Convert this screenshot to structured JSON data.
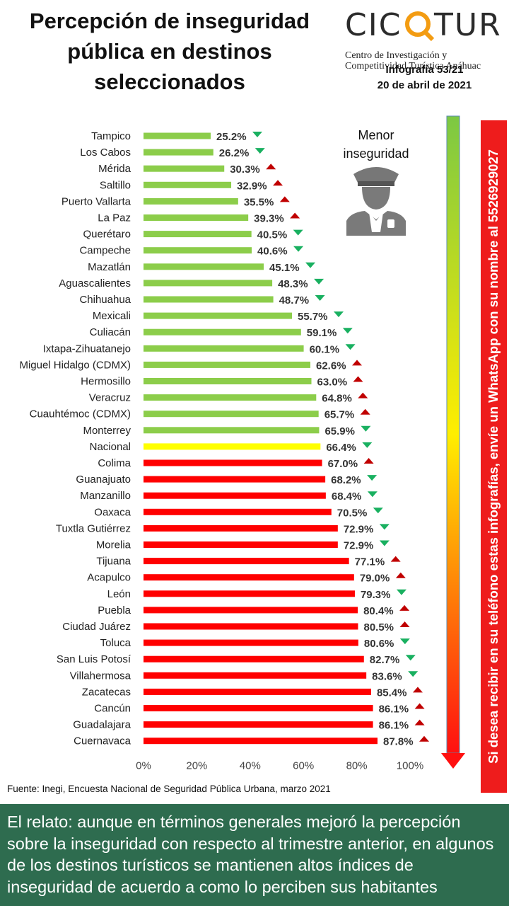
{
  "header": {
    "title_lines": [
      "Percepción de inseguridad",
      "pública en destinos",
      "seleccionados"
    ],
    "logo_text": "CICOTUR",
    "logo_sub_lines": [
      "Centro de Investigación y",
      "Competitividad Turística Anáhuac"
    ],
    "infografia": "Infografía 53/21",
    "date": "20 de abril de 2021"
  },
  "legend": {
    "badge_lines": [
      "Menor",
      "inseguridad"
    ],
    "police_icon": "police-officer-icon",
    "gradient_arrow_icon": "arrow-down-gradient-icon"
  },
  "side_banner": "Si desea recibir en su teléfono estas infografías, envíe un WhatsApp con su nombre al 5526929027",
  "source": "Fuente: Inegi,  Encuesta Nacional de Seguridad Pública Urbana, marzo 2021",
  "footer": "El relato: aunque en términos generales mejoró la percepción sobre la inseguridad con respecto al trimestre anterior, en algunos de los destinos turísticos se mantienen altos índices de inseguridad de acuerdo a como lo perciben sus habitantes",
  "colors": {
    "green": "#8ccd4a",
    "yellow": "#ffff00",
    "red": "#ff0000",
    "arrow_up": "#c00000",
    "arrow_down": "#19b060",
    "footer_bg": "#2e6c4f",
    "banner_bg": "#ee1c1c"
  },
  "chart_data": {
    "type": "bar",
    "orientation": "horizontal",
    "xlim": [
      0,
      100
    ],
    "xticks": [
      "0%",
      "20%",
      "40%",
      "60%",
      "80%",
      "100%"
    ],
    "grid": false,
    "categories": [
      "Tampico",
      "Los Cabos",
      "Mérida",
      "Saltillo",
      "Puerto Vallarta",
      "La Paz",
      "Querétaro",
      "Campeche",
      "Mazatlán",
      "Aguascalientes",
      "Chihuahua",
      "Mexicali",
      "Culiacán",
      "Ixtapa-Zihuatanejo",
      "Miguel Hidalgo (CDMX)",
      "Hermosillo",
      "Veracruz",
      "Cuauhtémoc (CDMX)",
      "Monterrey",
      "Nacional",
      "Colima",
      "Guanajuato",
      "Manzanillo",
      "Oaxaca",
      "Tuxtla Gutiérrez",
      "Morelia",
      "Tijuana",
      "Acapulco",
      "León",
      "Puebla",
      "Ciudad Juárez",
      "Toluca",
      "San Luis Potosí",
      "Villahermosa",
      "Zacatecas",
      "Cancún",
      "Guadalajara",
      "Cuernavaca"
    ],
    "values": [
      25.2,
      26.2,
      30.3,
      32.9,
      35.5,
      39.3,
      40.5,
      40.6,
      45.1,
      48.3,
      48.7,
      55.7,
      59.1,
      60.1,
      62.6,
      63.0,
      64.8,
      65.7,
      65.9,
      66.4,
      67.0,
      68.2,
      68.4,
      70.5,
      72.9,
      72.9,
      77.1,
      79.0,
      79.3,
      80.4,
      80.5,
      80.6,
      82.7,
      83.6,
      85.4,
      86.1,
      86.1,
      87.8
    ],
    "labels": [
      "25.2%",
      "26.2%",
      "30.3%",
      "32.9%",
      "35.5%",
      "39.3%",
      "40.5%",
      "40.6%",
      "45.1%",
      "48.3%",
      "48.7%",
      "55.7%",
      "59.1%",
      "60.1%",
      "62.6%",
      "63.0%",
      "64.8%",
      "65.7%",
      "65.9%",
      "66.4%",
      "67.0%",
      "68.2%",
      "68.4%",
      "70.5%",
      "72.9%",
      "72.9%",
      "77.1%",
      "79.0%",
      "79.3%",
      "80.4%",
      "80.5%",
      "80.6%",
      "82.7%",
      "83.6%",
      "85.4%",
      "86.1%",
      "86.1%",
      "87.8%"
    ],
    "bar_colors": [
      "green",
      "green",
      "green",
      "green",
      "green",
      "green",
      "green",
      "green",
      "green",
      "green",
      "green",
      "green",
      "green",
      "green",
      "green",
      "green",
      "green",
      "green",
      "green",
      "yellow",
      "red",
      "red",
      "red",
      "red",
      "red",
      "red",
      "red",
      "red",
      "red",
      "red",
      "red",
      "red",
      "red",
      "red",
      "red",
      "red",
      "red",
      "red"
    ],
    "trend": [
      "down",
      "down",
      "up",
      "up",
      "up",
      "up",
      "down",
      "down",
      "down",
      "down",
      "down",
      "down",
      "down",
      "down",
      "up",
      "up",
      "up",
      "up",
      "down",
      "down",
      "up",
      "down",
      "down",
      "down",
      "down",
      "down",
      "up",
      "up",
      "down",
      "up",
      "up",
      "down",
      "down",
      "down",
      "up",
      "up",
      "up",
      "up"
    ]
  }
}
